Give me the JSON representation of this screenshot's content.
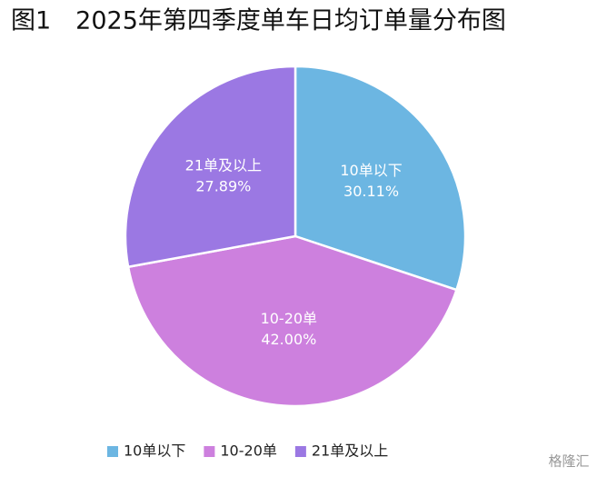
{
  "chart_data": {
    "type": "pie",
    "title": "图1　2025年第四季度单车日均订单量分布图",
    "categories": [
      "10单以下",
      "10-20单",
      "21单及以上"
    ],
    "values": [
      30.11,
      42.0,
      27.89
    ],
    "value_labels": [
      "30.11%",
      "42.00%",
      "27.89%"
    ],
    "colors": [
      "#6cb6e2",
      "#cd80de",
      "#9b78e3"
    ],
    "legend": "bottom",
    "watermark": "格隆汇"
  }
}
